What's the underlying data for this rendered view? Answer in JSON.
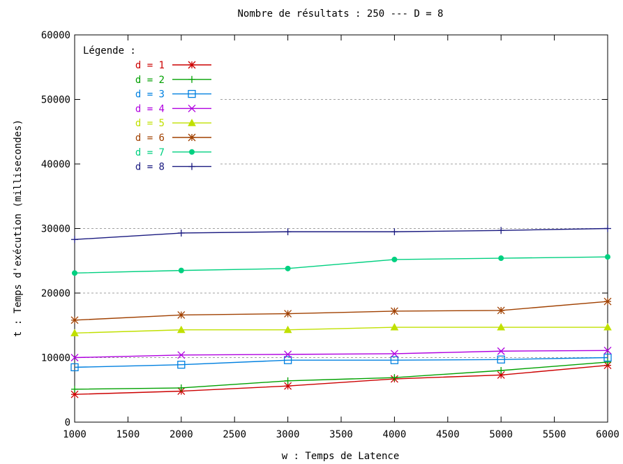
{
  "chart_data": {
    "type": "line",
    "title": "Nombre de résultats : 250 --- D = 8",
    "xlabel": "w : Temps de Latence",
    "ylabel": "t : Temps d'exécution (millisecondes)",
    "xlim": [
      1000,
      6000
    ],
    "ylim": [
      0,
      60000
    ],
    "xticks": [
      1000,
      1500,
      2000,
      2500,
      3000,
      3500,
      4000,
      4500,
      5000,
      5500,
      6000
    ],
    "yticks": [
      0,
      10000,
      20000,
      30000,
      40000,
      50000,
      60000
    ],
    "grid": "horizontal-dashed",
    "legend": {
      "title": "Légende :",
      "position": "top-left"
    },
    "x": [
      1000,
      2000,
      3000,
      4000,
      5000,
      6000
    ],
    "series": [
      {
        "name": "d = 1",
        "color": "#cc0000",
        "marker": "star",
        "values": [
          4300,
          4800,
          5600,
          6700,
          7300,
          8800
        ]
      },
      {
        "name": "d = 2",
        "color": "#00a000",
        "marker": "plus",
        "values": [
          5100,
          5300,
          6400,
          6900,
          8000,
          9300
        ]
      },
      {
        "name": "d = 3",
        "color": "#0080e0",
        "marker": "square",
        "values": [
          8500,
          8900,
          9600,
          9600,
          9700,
          10000
        ]
      },
      {
        "name": "d = 4",
        "color": "#b000e0",
        "marker": "x",
        "values": [
          10000,
          10400,
          10500,
          10600,
          11000,
          11100
        ]
      },
      {
        "name": "d = 5",
        "color": "#c0e000",
        "marker": "triangle",
        "values": [
          13800,
          14300,
          14300,
          14700,
          14700,
          14700
        ]
      },
      {
        "name": "d = 6",
        "color": "#a04000",
        "marker": "star",
        "values": [
          15800,
          16600,
          16800,
          17200,
          17300,
          18700
        ]
      },
      {
        "name": "d = 7",
        "color": "#00d080",
        "marker": "circle",
        "values": [
          23100,
          23500,
          23800,
          25200,
          25400,
          25600
        ]
      },
      {
        "name": "d = 8",
        "color": "#1a1a80",
        "marker": "plus",
        "values": [
          28300,
          29300,
          29500,
          29500,
          29700,
          30000
        ]
      }
    ]
  }
}
